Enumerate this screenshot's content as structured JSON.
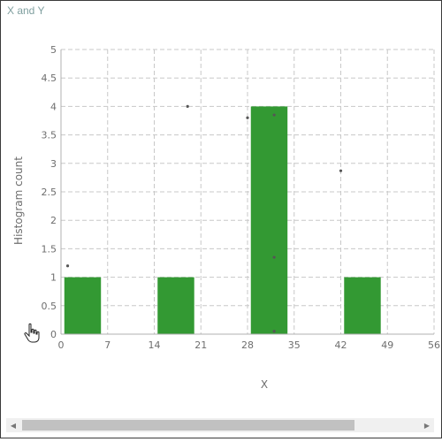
{
  "window": {
    "title": "X and Y"
  },
  "chart_data": {
    "type": "bar",
    "title": "X and Y",
    "xlabel": "X",
    "ylabel": "Histogram count",
    "xlim": [
      0,
      56
    ],
    "ylim": [
      0,
      5
    ],
    "x_ticks": [
      0,
      7,
      14,
      21,
      28,
      35,
      42,
      49,
      56
    ],
    "y_ticks": [
      0,
      0.5,
      1,
      1.5,
      2,
      2.5,
      3,
      3.5,
      4,
      4.5,
      5
    ],
    "y_tick_labels": [
      "0",
      "0.5",
      "1",
      "1.5",
      "2",
      "2.5",
      "3",
      "3.5",
      "4",
      "4.5",
      "5"
    ],
    "grid": true,
    "bar_color": "#339933",
    "bins": [
      {
        "x0": 0.5,
        "x1": 6.0,
        "count": 1
      },
      {
        "x0": 14.5,
        "x1": 20.0,
        "count": 1
      },
      {
        "x0": 28.5,
        "x1": 34.0,
        "count": 4
      },
      {
        "x0": 42.5,
        "x1": 48.0,
        "count": 1
      }
    ],
    "points": [
      {
        "x": 1,
        "y": 1.2
      },
      {
        "x": 19,
        "y": 4.0
      },
      {
        "x": 28,
        "y": 3.8
      },
      {
        "x": 32,
        "y": 3.85
      },
      {
        "x": 32,
        "y": 1.35
      },
      {
        "x": 32,
        "y": 0.05
      },
      {
        "x": 42,
        "y": 2.87
      }
    ]
  },
  "scrollbar": {
    "left_arrow": "◀",
    "right_arrow": "▶"
  }
}
